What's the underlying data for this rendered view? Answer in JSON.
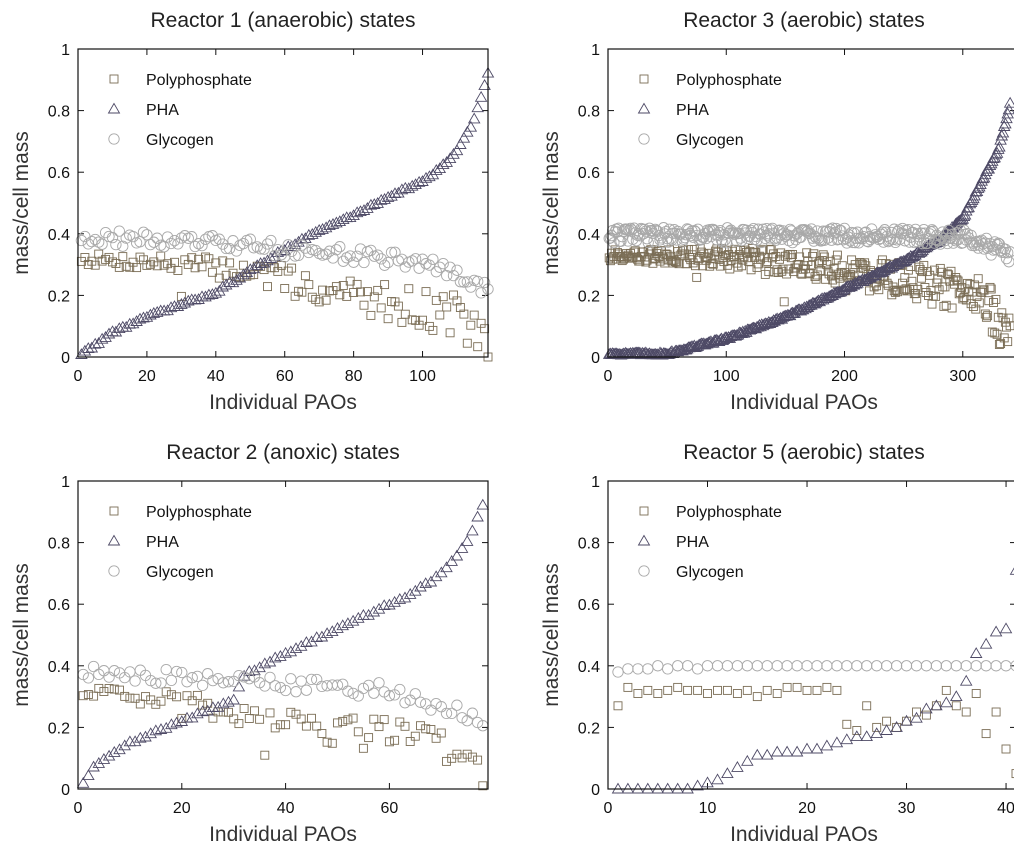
{
  "colors": {
    "polyphosphate": "#7a6d55",
    "pha": "#4e4a66",
    "glycogen": "#a9a9a9",
    "axis": "#111111"
  },
  "chart_data": [
    {
      "type": "scatter",
      "title": "Reactor 1 (anaerobic) states",
      "xlabel": "Individual PAOs",
      "ylabel": "mass/cell mass",
      "xlim": [
        0,
        119
      ],
      "ylim": [
        0,
        1
      ],
      "xticks": [
        "0",
        "20",
        "40",
        "60",
        "80",
        "100"
      ],
      "yticks": [
        "0",
        "0.2",
        "0.4",
        "0.6",
        "0.8",
        "1"
      ],
      "legend_position": "top-left",
      "grid": false,
      "n": 119,
      "series": [
        {
          "name": "Polyphosphate",
          "marker": "square",
          "x": [
            1,
            10,
            20,
            30,
            40,
            50,
            60,
            70,
            80,
            90,
            100,
            110,
            119
          ],
          "y": [
            0.32,
            0.31,
            0.31,
            0.3,
            0.29,
            0.28,
            0.25,
            0.22,
            0.2,
            0.18,
            0.16,
            0.14,
            0.04
          ]
        },
        {
          "name": "PHA",
          "marker": "triangle",
          "x": [
            1,
            5,
            10,
            20,
            30,
            40,
            50,
            60,
            70,
            80,
            90,
            100,
            105,
            110,
            115,
            119
          ],
          "y": [
            0.01,
            0.04,
            0.08,
            0.13,
            0.17,
            0.21,
            0.28,
            0.35,
            0.41,
            0.46,
            0.52,
            0.57,
            0.61,
            0.67,
            0.77,
            0.92
          ]
        },
        {
          "name": "Glycogen",
          "marker": "circle",
          "x": [
            1,
            20,
            40,
            60,
            80,
            100,
            119
          ],
          "y": [
            0.39,
            0.38,
            0.37,
            0.35,
            0.33,
            0.31,
            0.22
          ]
        }
      ]
    },
    {
      "type": "scatter",
      "title": "Reactor 3 (aerobic) states",
      "xlabel": "Individual PAOs",
      "ylabel": "mass/cell mass",
      "xlim": [
        0,
        345
      ],
      "ylim": [
        0,
        1
      ],
      "xticks": [
        "0",
        "100",
        "200",
        "300"
      ],
      "yticks": [
        "0",
        "0.2",
        "0.4",
        "0.6",
        "0.8",
        "1"
      ],
      "legend_position": "top-left",
      "grid": false,
      "n": 340,
      "series": [
        {
          "name": "Polyphosphate",
          "marker": "square",
          "x": [
            1,
            100,
            150,
            200,
            250,
            290,
            320,
            340
          ],
          "y": [
            0.33,
            0.32,
            0.31,
            0.28,
            0.25,
            0.22,
            0.18,
            0.05
          ]
        },
        {
          "name": "PHA",
          "marker": "triangle",
          "x": [
            1,
            50,
            100,
            150,
            200,
            250,
            280,
            300,
            320,
            330,
            340
          ],
          "y": [
            0.01,
            0.01,
            0.06,
            0.13,
            0.22,
            0.31,
            0.38,
            0.45,
            0.6,
            0.67,
            0.82
          ]
        },
        {
          "name": "Glycogen",
          "marker": "circle",
          "x": [
            1,
            200,
            300,
            340
          ],
          "y": [
            0.395,
            0.395,
            0.39,
            0.33
          ]
        }
      ]
    },
    {
      "type": "scatter",
      "title": "Reactor 2 (anoxic) states",
      "xlabel": "Individual PAOs",
      "ylabel": "mass/cell mass",
      "xlim": [
        0,
        79
      ],
      "ylim": [
        0,
        1
      ],
      "xticks": [
        "0",
        "20",
        "40",
        "60"
      ],
      "yticks": [
        "0",
        "0.2",
        "0.4",
        "0.6",
        "0.8",
        "1"
      ],
      "legend_position": "top-left",
      "grid": false,
      "n": 78,
      "series": [
        {
          "name": "Polyphosphate",
          "marker": "square",
          "x": [
            1,
            10,
            20,
            30,
            40,
            50,
            60,
            70,
            78
          ],
          "y": [
            0.31,
            0.3,
            0.28,
            0.25,
            0.22,
            0.19,
            0.17,
            0.14,
            0.04
          ]
        },
        {
          "name": "PHA",
          "marker": "triangle",
          "x": [
            1,
            3,
            5,
            10,
            20,
            30,
            32,
            40,
            50,
            60,
            65,
            70,
            75,
            78
          ],
          "y": [
            0.02,
            0.07,
            0.1,
            0.15,
            0.22,
            0.29,
            0.37,
            0.44,
            0.52,
            0.6,
            0.64,
            0.7,
            0.8,
            0.92
          ]
        },
        {
          "name": "Glycogen",
          "marker": "circle",
          "x": [
            1,
            20,
            40,
            60,
            78
          ],
          "y": [
            0.38,
            0.36,
            0.34,
            0.32,
            0.22
          ]
        }
      ]
    },
    {
      "type": "scatter",
      "title": "Reactor 5 (aerobic) states",
      "xlabel": "Individual PAOs",
      "ylabel": "mass/cell mass",
      "xlim": [
        0,
        41
      ],
      "ylim": [
        0,
        1
      ],
      "xticks": [
        "0",
        "10",
        "20",
        "30",
        "40"
      ],
      "yticks": [
        "0",
        "0.2",
        "0.4",
        "0.6",
        "0.8",
        "1"
      ],
      "legend_position": "top-left",
      "grid": false,
      "n": 41,
      "series": [
        {
          "name": "Polyphosphate",
          "marker": "square",
          "x": [
            1,
            2,
            3,
            4,
            5,
            6,
            7,
            8,
            9,
            10,
            11,
            12,
            13,
            14,
            15,
            16,
            17,
            18,
            19,
            20,
            21,
            22,
            23,
            24,
            25,
            26,
            27,
            28,
            29,
            30,
            31,
            32,
            33,
            34,
            35,
            36,
            37,
            38,
            39,
            40,
            41
          ],
          "y": [
            0.27,
            0.33,
            0.31,
            0.32,
            0.31,
            0.32,
            0.33,
            0.32,
            0.32,
            0.31,
            0.32,
            0.32,
            0.31,
            0.32,
            0.3,
            0.32,
            0.31,
            0.33,
            0.33,
            0.32,
            0.32,
            0.33,
            0.32,
            0.21,
            0.19,
            0.27,
            0.2,
            0.22,
            0.2,
            0.22,
            0.25,
            0.24,
            0.27,
            0.32,
            0.27,
            0.25,
            0.31,
            0.18,
            0.25,
            0.13,
            0.05
          ]
        },
        {
          "name": "PHA",
          "marker": "triangle",
          "x": [
            1,
            2,
            3,
            4,
            5,
            6,
            7,
            8,
            9,
            10,
            11,
            12,
            13,
            14,
            15,
            16,
            17,
            18,
            19,
            20,
            21,
            22,
            23,
            24,
            25,
            26,
            27,
            28,
            29,
            30,
            31,
            32,
            33,
            34,
            35,
            36,
            37,
            38,
            39,
            40,
            41
          ],
          "y": [
            0.0,
            0.0,
            0.0,
            0.0,
            0.0,
            0.0,
            0.0,
            0.0,
            0.01,
            0.02,
            0.03,
            0.05,
            0.07,
            0.09,
            0.11,
            0.11,
            0.12,
            0.12,
            0.12,
            0.13,
            0.13,
            0.14,
            0.15,
            0.16,
            0.17,
            0.17,
            0.18,
            0.19,
            0.2,
            0.22,
            0.23,
            0.26,
            0.27,
            0.28,
            0.3,
            0.35,
            0.44,
            0.47,
            0.51,
            0.52,
            0.71
          ]
        },
        {
          "name": "Glycogen",
          "marker": "circle",
          "x": [
            1,
            2,
            3,
            4,
            5,
            6,
            7,
            8,
            9,
            10,
            11,
            12,
            13,
            14,
            15,
            16,
            17,
            18,
            19,
            20,
            21,
            22,
            23,
            24,
            25,
            26,
            27,
            28,
            29,
            30,
            31,
            32,
            33,
            34,
            35,
            36,
            37,
            38,
            39,
            40,
            41
          ],
          "y": [
            0.38,
            0.39,
            0.39,
            0.39,
            0.4,
            0.39,
            0.4,
            0.4,
            0.39,
            0.4,
            0.4,
            0.4,
            0.4,
            0.4,
            0.4,
            0.4,
            0.4,
            0.4,
            0.4,
            0.4,
            0.4,
            0.4,
            0.4,
            0.4,
            0.4,
            0.4,
            0.4,
            0.4,
            0.4,
            0.4,
            0.4,
            0.4,
            0.4,
            0.4,
            0.4,
            0.4,
            0.4,
            0.4,
            0.4,
            0.4,
            0.4
          ]
        }
      ]
    }
  ]
}
